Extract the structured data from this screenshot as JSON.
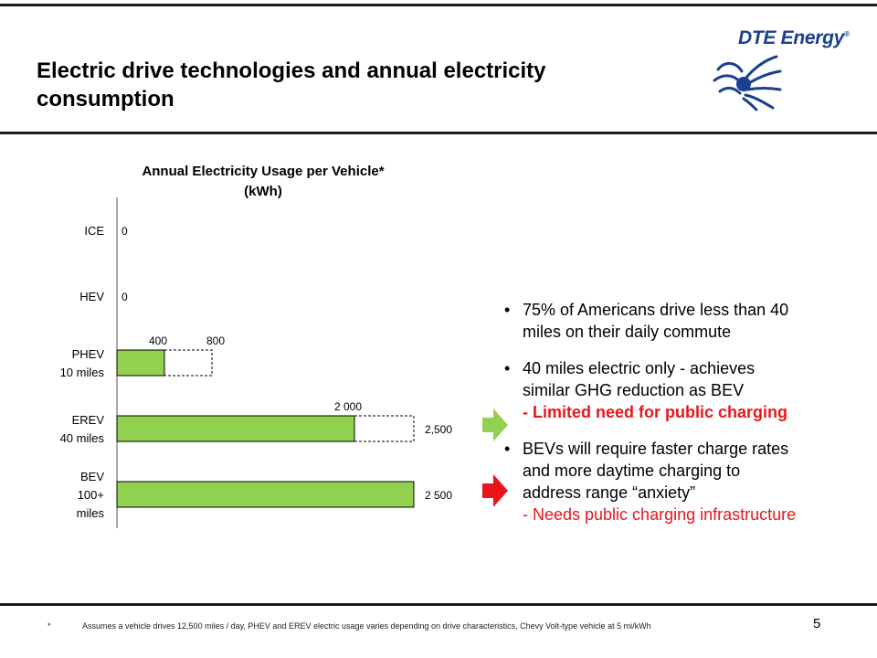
{
  "slide": {
    "title_line1": "Electric drive technologies and annual electricity",
    "title_line2": "consumption",
    "logo_text": "DTE Energy",
    "logo_registered": "®",
    "page_number": "5"
  },
  "chart_data": {
    "type": "bar",
    "orientation": "horizontal",
    "title_line1": "Annual Electricity Usage per Vehicle*",
    "title_line2": "(kWh)",
    "categories": [
      {
        "label_lines": [
          "ICE"
        ],
        "value": 0,
        "value_label": "0",
        "potential": null,
        "potential_label": ""
      },
      {
        "label_lines": [
          "HEV"
        ],
        "value": 0,
        "value_label": "0",
        "potential": null,
        "potential_label": ""
      },
      {
        "label_lines": [
          "PHEV",
          "10 miles"
        ],
        "value": 400,
        "value_label": "400",
        "potential": 800,
        "potential_label": "800"
      },
      {
        "label_lines": [
          "EREV",
          "40 miles"
        ],
        "value": 2000,
        "value_label": "2 000",
        "potential": 2500,
        "potential_label": "2,500"
      },
      {
        "label_lines": [
          "BEV",
          "100+",
          "miles"
        ],
        "value": 2500,
        "value_label": "2 500",
        "potential": null,
        "potential_label": ""
      }
    ],
    "xlim": [
      0,
      2500
    ],
    "bar_color": "#92d050",
    "potential_style": "dashed outline",
    "grid": false
  },
  "arrows": [
    {
      "color": "#92d050",
      "name": "green"
    },
    {
      "color": "#e8161b",
      "name": "red"
    }
  ],
  "bullets": [
    {
      "lines": [
        "75% of Americans drive less than 40",
        "miles on their daily commute"
      ],
      "red_line": ""
    },
    {
      "lines": [
        "40 miles electric only - achieves",
        "similar GHG reduction as BEV"
      ],
      "red_line": "- Limited need for public charging"
    },
    {
      "lines": [
        "BEVs will require faster charge rates",
        "and more daytime charging to",
        "address range “anxiety”"
      ],
      "red_line": "- Needs public charging infrastructure"
    }
  ],
  "footnote": {
    "marker": "*",
    "text": "Assumes a vehicle drives 12,500 miles / day, PHEV and EREV electric usage varies depending on drive characteristics, Chevy Volt-type vehicle at 5 mi/kWh"
  },
  "colors": {
    "green": "#92d050",
    "red": "#e8161b",
    "brand_blue": "#1b3f8f"
  }
}
